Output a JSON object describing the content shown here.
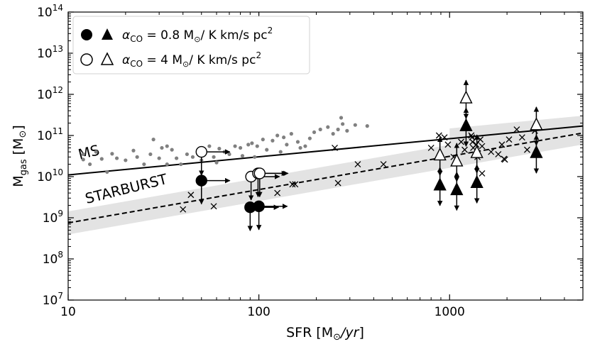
{
  "chart_data": {
    "type": "scatter",
    "x_scale": "log",
    "y_scale": "log",
    "xlim": [
      10,
      5000
    ],
    "ylim": [
      10000000,
      100000000000000
    ],
    "xlabel_main": "SFR [M",
    "xlabel_sun": "⊙",
    "xlabel_unit": "/yr",
    "xlabel_close": "]",
    "ylabel_main": "M",
    "ylabel_sub": "gas",
    "ylabel_unit": " [M",
    "ylabel_sun": "⊙",
    "ylabel_close": "]",
    "x_ticks": [
      {
        "value": 10,
        "label": "10"
      },
      {
        "value": 100,
        "label": "100"
      },
      {
        "value": 1000,
        "label": "1000"
      }
    ],
    "y_ticks": [
      {
        "exp": 7,
        "base": "10",
        "sup": "7"
      },
      {
        "exp": 8,
        "base": "10",
        "sup": "8"
      },
      {
        "exp": 9,
        "base": "10",
        "sup": "9"
      },
      {
        "exp": 10,
        "base": "10",
        "sup": "10"
      },
      {
        "exp": 11,
        "base": "10",
        "sup": "11"
      },
      {
        "exp": 12,
        "base": "10",
        "sup": "12"
      },
      {
        "exp": 13,
        "base": "10",
        "sup": "13"
      },
      {
        "exp": 14,
        "base": "10",
        "sup": "14"
      }
    ],
    "relations": [
      {
        "name": "MS",
        "style": "solid",
        "x": [
          10,
          5000
        ],
        "y": [
          11000000000,
          170000000000
        ],
        "band": 0
      },
      {
        "name": "STARBURST",
        "style": "dashed",
        "x": [
          10,
          5000
        ],
        "y": [
          750000000,
          115000000000
        ],
        "band": 0.28
      }
    ],
    "ms_band_x": [
      1000,
      5000
    ],
    "ms_band_dex": 0.25,
    "relation_labels": [
      {
        "text": "MS",
        "x": 11.5,
        "y": 26000000000,
        "angle": -14
      },
      {
        "text": "STARBURST",
        "x": 12.5,
        "y": 2200000000,
        "angle": -14
      }
    ],
    "legend": {
      "position": "top-left",
      "entries": [
        {
          "filled": true,
          "alpha": "α",
          "sub": "CO",
          "text": " = 0.8 M",
          "sun": "⊙",
          "unit": "/ K km/s pc",
          "sup": "2"
        },
        {
          "filled": false,
          "alpha": "α",
          "sub": "CO",
          "text": " = 4 M",
          "sun": "⊙",
          "unit": "/ K km/s pc",
          "sup": "2"
        }
      ]
    },
    "ms_galaxies": {
      "color": "#808080",
      "points": [
        [
          12,
          35000000000
        ],
        [
          12,
          26000000000
        ],
        [
          13,
          20000000000
        ],
        [
          14,
          40000000000
        ],
        [
          15,
          27000000000
        ],
        [
          16,
          13000000000
        ],
        [
          17,
          36000000000
        ],
        [
          18,
          28000000000
        ],
        [
          20,
          25000000000
        ],
        [
          22,
          43000000000
        ],
        [
          23,
          30000000000
        ],
        [
          25,
          20000000000
        ],
        [
          27,
          35000000000
        ],
        [
          28,
          80000000000
        ],
        [
          30,
          28000000000
        ],
        [
          31,
          50000000000
        ],
        [
          33,
          55000000000
        ],
        [
          35,
          45000000000
        ],
        [
          37,
          28000000000
        ],
        [
          39,
          20000000000
        ],
        [
          42,
          35000000000
        ],
        [
          45,
          30000000000
        ],
        [
          48,
          40000000000
        ],
        [
          50,
          25000000000
        ],
        [
          55,
          55000000000
        ],
        [
          58,
          30000000000
        ],
        [
          62,
          48000000000
        ],
        [
          66,
          40000000000
        ],
        [
          70,
          35000000000
        ],
        [
          75,
          55000000000
        ],
        [
          80,
          50000000000
        ],
        [
          82,
          32000000000
        ],
        [
          88,
          60000000000
        ],
        [
          92,
          65000000000
        ],
        [
          98,
          55000000000
        ],
        [
          105,
          80000000000
        ],
        [
          110,
          45000000000
        ],
        [
          118,
          75000000000
        ],
        [
          125,
          100000000000
        ],
        [
          135,
          90000000000
        ],
        [
          140,
          60000000000
        ],
        [
          148,
          110000000000
        ],
        [
          160,
          70000000000
        ],
        [
          165,
          50000000000
        ],
        [
          175,
          55000000000
        ],
        [
          185,
          85000000000
        ],
        [
          195,
          120000000000
        ],
        [
          210,
          140000000000
        ],
        [
          230,
          160000000000
        ],
        [
          245,
          110000000000
        ],
        [
          260,
          140000000000
        ],
        [
          270,
          270000000000
        ],
        [
          275,
          190000000000
        ],
        [
          290,
          130000000000
        ],
        [
          320,
          180000000000
        ],
        [
          370,
          170000000000
        ],
        [
          130,
          40000000000
        ],
        [
          95,
          30000000000
        ],
        [
          60,
          22000000000
        ],
        [
          33,
          20000000000
        ]
      ]
    },
    "starbursts": {
      "points": [
        [
          40,
          1600000000
        ],
        [
          44,
          3600000000
        ],
        [
          58,
          1900000000
        ],
        [
          150,
          6500000000
        ],
        [
          155,
          6500000000
        ],
        [
          125,
          4000000000
        ],
        [
          260,
          7000000000
        ],
        [
          250,
          50000000000
        ],
        [
          330,
          20000000000
        ],
        [
          450,
          20000000000
        ],
        [
          800,
          50000000000
        ],
        [
          880,
          100000000000
        ],
        [
          940,
          90000000000
        ],
        [
          980,
          60000000000
        ],
        [
          1050,
          30000000000
        ],
        [
          1150,
          70000000000
        ],
        [
          1200,
          45000000000
        ],
        [
          1300,
          100000000000
        ],
        [
          1310,
          90000000000
        ],
        [
          1320,
          70000000000
        ],
        [
          1330,
          50000000000
        ],
        [
          1380,
          60000000000
        ],
        [
          1400,
          30000000000
        ],
        [
          1450,
          80000000000
        ],
        [
          1480,
          55000000000
        ],
        [
          1480,
          12000000000
        ],
        [
          1650,
          40000000000
        ],
        [
          1800,
          35000000000
        ],
        [
          1880,
          60000000000
        ],
        [
          1930,
          27000000000
        ],
        [
          1950,
          26000000000
        ],
        [
          2050,
          80000000000
        ],
        [
          2250,
          140000000000
        ],
        [
          2400,
          90000000000
        ],
        [
          2550,
          45000000000
        ],
        [
          2800,
          130000000000
        ]
      ]
    },
    "series": [
      {
        "name": "α_CO = 0.8, circles",
        "marker": "circle",
        "filled": true,
        "points": [
          {
            "x": 50,
            "y": 8000000000,
            "arrows": [
              "right",
              "down"
            ]
          },
          {
            "x": 90,
            "y": 1800000000,
            "arrows": [
              "right",
              "down"
            ]
          },
          {
            "x": 100,
            "y": 1900000000,
            "arrows": [
              "right",
              "down"
            ]
          }
        ]
      },
      {
        "name": "α_CO = 4, circles",
        "marker": "circle",
        "filled": false,
        "points": [
          {
            "x": 50,
            "y": 40000000000,
            "arrows": [
              "right",
              "down"
            ]
          },
          {
            "x": 91,
            "y": 10000000000,
            "arrows": [
              "right",
              "down"
            ]
          },
          {
            "x": 99,
            "y": 12000000000,
            "arrows": [
              "right",
              "down"
            ]
          },
          {
            "x": 101,
            "y": 12000000000,
            "arrows": [
              "right",
              "down"
            ]
          }
        ]
      },
      {
        "name": "α_CO = 0.8, triangles",
        "marker": "triangle",
        "filled": true,
        "points": [
          {
            "x": 890,
            "y": 6500000000,
            "arrows": [
              "down",
              "up"
            ]
          },
          {
            "x": 1090,
            "y": 5000000000,
            "arrows": [
              "down",
              "up"
            ]
          },
          {
            "x": 1220,
            "y": 180000000000,
            "arrows": [
              "down",
              "up"
            ]
          },
          {
            "x": 1390,
            "y": 7500000000,
            "arrows": [
              "down",
              "up"
            ]
          },
          {
            "x": 2850,
            "y": 40000000000,
            "arrows": [
              "down",
              "up"
            ]
          }
        ]
      },
      {
        "name": "α_CO = 4, triangles",
        "marker": "triangle",
        "filled": false,
        "points": [
          {
            "x": 890,
            "y": 35000000000,
            "arrows": [
              "down",
              "up"
            ]
          },
          {
            "x": 1090,
            "y": 25000000000,
            "arrows": [
              "down",
              "up"
            ]
          },
          {
            "x": 1220,
            "y": 850000000000,
            "arrows": [
              "down",
              "up"
            ]
          },
          {
            "x": 1390,
            "y": 40000000000,
            "arrows": [
              "down",
              "up"
            ]
          },
          {
            "x": 2850,
            "y": 190000000000,
            "arrows": [
              "down",
              "up"
            ]
          }
        ]
      }
    ]
  }
}
